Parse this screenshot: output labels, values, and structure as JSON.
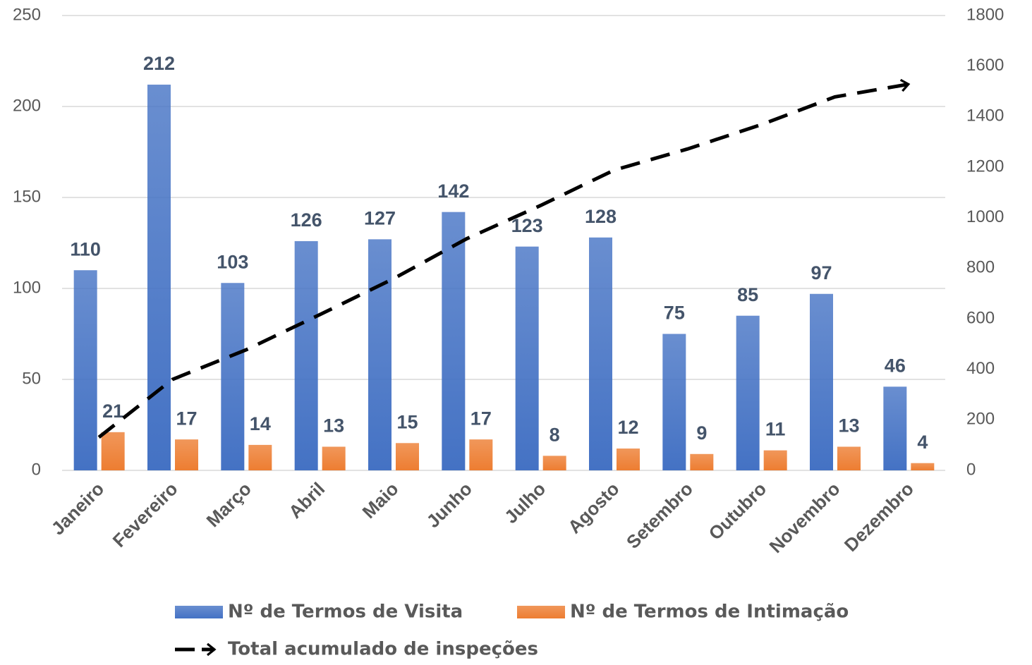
{
  "chart_data": {
    "type": "bar",
    "categories": [
      "Janeiro",
      "Fevereiro",
      "Março",
      "Abril",
      "Maio",
      "Junho",
      "Julho",
      "Agosto",
      "Setembro",
      "Outubro",
      "Novembro",
      "Dezembro"
    ],
    "series": [
      {
        "name": "Nº de Termos de Visita",
        "color": "#4472c4",
        "type": "bar",
        "values": [
          110,
          212,
          103,
          126,
          127,
          142,
          123,
          128,
          75,
          85,
          97,
          46
        ]
      },
      {
        "name": "Nº de Termos de Intimação",
        "color": "#ed7d31",
        "type": "bar",
        "values": [
          21,
          17,
          14,
          13,
          15,
          17,
          8,
          12,
          9,
          11,
          13,
          4
        ]
      },
      {
        "name": "Total acumulado de inspeções",
        "color": "#000000",
        "type": "line",
        "axis": "y2",
        "values": [
          131,
          360,
          477,
          616,
          758,
          917,
          1048,
          1188,
          1272,
          1368,
          1478,
          1528
        ]
      }
    ],
    "ylim": [
      0,
      250
    ],
    "yticks": [
      0,
      50,
      100,
      150,
      200,
      250
    ],
    "y2lim": [
      0,
      1800
    ],
    "y2ticks": [
      0,
      200,
      400,
      600,
      800,
      1000,
      1200,
      1400,
      1600,
      1800
    ],
    "grid": true,
    "legend": "bottom"
  }
}
